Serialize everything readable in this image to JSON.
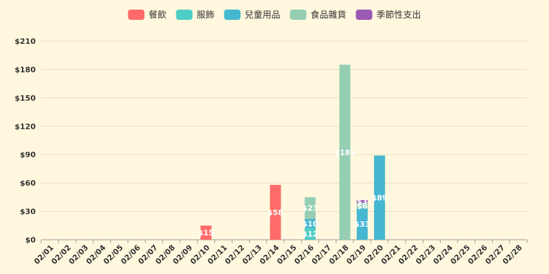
{
  "chart_data": {
    "type": "bar",
    "stacked": true,
    "legend_position": "top",
    "grid": true,
    "categories": [
      "02/01",
      "02/02",
      "02/03",
      "02/04",
      "02/05",
      "02/06",
      "02/07",
      "02/08",
      "02/09",
      "02/10",
      "02/11",
      "02/12",
      "02/13",
      "02/14",
      "02/15",
      "02/16",
      "02/17",
      "02/18",
      "02/19",
      "02/20",
      "02/21",
      "02/22",
      "02/23",
      "02/24",
      "02/25",
      "02/26",
      "02/27",
      "02/28"
    ],
    "ylim": [
      0,
      210
    ],
    "yticks": [
      0,
      30,
      60,
      90,
      120,
      150,
      180,
      210
    ],
    "ytick_labels": [
      "$0",
      "$30",
      "$60",
      "$90",
      "$120",
      "$150",
      "$180",
      "$210"
    ],
    "value_prefix": "$",
    "series": [
      {
        "name": "餐飲",
        "color": "#ff6b6b",
        "values": [
          0,
          0,
          0,
          0,
          0,
          0,
          0,
          0,
          0,
          15,
          0,
          0,
          0,
          58,
          0,
          0,
          0,
          0,
          0,
          0,
          0,
          0,
          0,
          0,
          0,
          0,
          0,
          0
        ]
      },
      {
        "name": "服飾",
        "color": "#4ecdc4",
        "values": [
          0,
          0,
          0,
          0,
          0,
          0,
          0,
          0,
          0,
          0,
          0,
          0,
          0,
          0,
          0,
          12,
          0,
          0,
          0,
          0,
          0,
          0,
          0,
          0,
          0,
          0,
          0,
          0
        ]
      },
      {
        "name": "兒童用品",
        "color": "#45b7d1",
        "values": [
          0,
          0,
          0,
          0,
          0,
          0,
          0,
          0,
          0,
          0,
          0,
          0,
          0,
          0,
          0,
          10,
          0,
          0,
          33,
          89,
          0,
          0,
          0,
          0,
          0,
          0,
          0,
          0
        ]
      },
      {
        "name": "食品雜貨",
        "color": "#96ceb4",
        "values": [
          0,
          0,
          0,
          0,
          0,
          0,
          0,
          0,
          0,
          0,
          0,
          0,
          0,
          0,
          0,
          23,
          0,
          185,
          6,
          0,
          0,
          0,
          0,
          0,
          0,
          0,
          0,
          0
        ]
      },
      {
        "name": "季節性支出",
        "color": "#9b59b6",
        "values": [
          0,
          0,
          0,
          0,
          0,
          0,
          0,
          0,
          0,
          0,
          0,
          0,
          0,
          0,
          0,
          0,
          0,
          0,
          3,
          0,
          0,
          0,
          0,
          0,
          0,
          0,
          0,
          0
        ]
      }
    ]
  }
}
